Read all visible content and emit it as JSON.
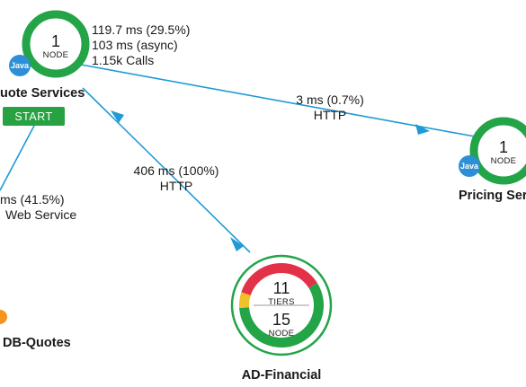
{
  "colors": {
    "edge": "#1f9ad6",
    "ring_green": "#22a447",
    "ring_red": "#e33247",
    "ring_yellow": "#f2c029",
    "java_badge": "#2d8fd5",
    "start_badge": "#27a142",
    "db_orange": "#f7941d"
  },
  "nodes": {
    "quote_services": {
      "name": "uote Services",
      "count": "1",
      "unit": "NODE",
      "badge": "Java",
      "start_label": "START"
    },
    "pricing_services": {
      "name": "Pricing Serv",
      "count": "1",
      "unit": "NODE",
      "badge": "Java"
    },
    "ad_financial": {
      "name": "AD-Financial",
      "tiers_count": "11",
      "tiers_unit": "TIERS",
      "nodes_count": "15",
      "nodes_unit": "NODE",
      "health_shares": {
        "red": 0.36,
        "yellow": 0.06,
        "green": 0.58
      }
    },
    "db_quotes": {
      "name": "DB-Quotes"
    }
  },
  "edges": {
    "quote_stats": {
      "line1": "119.7 ms (29.5%)",
      "line2": "103 ms (async)",
      "line3": "1.15k Calls"
    },
    "to_pricing": {
      "line1": "3 ms (0.7%)",
      "line2": "HTTP"
    },
    "ad_to_quote": {
      "line1": "406 ms (100%)",
      "line2": "HTTP"
    },
    "web_service": {
      "line1": "ms (41.5%)",
      "line2": "Web Service"
    }
  }
}
